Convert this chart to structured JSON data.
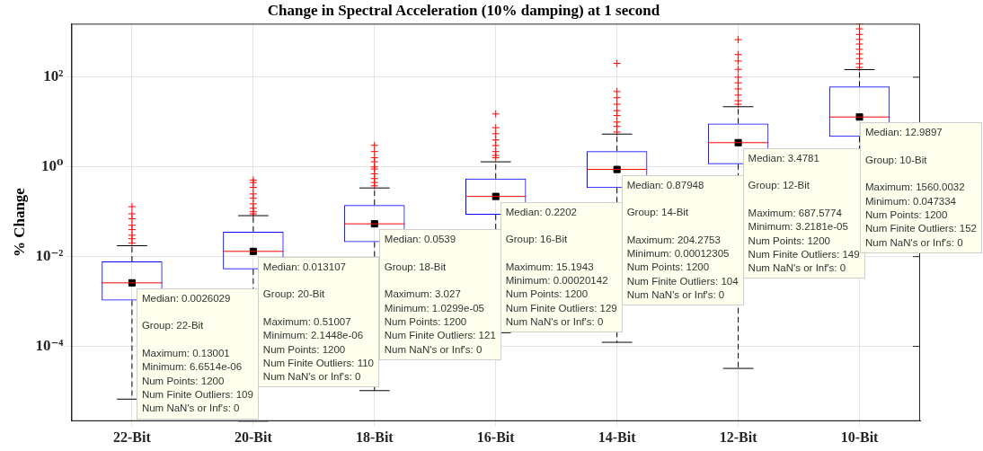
{
  "chart_data": {
    "type": "box",
    "title": "Change in Spectral Acceleration (10% damping) at 1 second",
    "ylabel": "% Change",
    "categories": [
      "22-Bit",
      "20-Bit",
      "18-Bit",
      "16-Bit",
      "14-Bit",
      "12-Bit",
      "10-Bit"
    ],
    "color": "#0000ff",
    "boxes": [
      {
        "low": 6.6514e-06,
        "q1": 0.00105,
        "median": 0.0026029,
        "q3": 0.0078,
        "high": 0.0175,
        "outliers": [
          0.02,
          0.025,
          0.03,
          0.04,
          0.05,
          0.07,
          0.09,
          0.13001
        ]
      },
      {
        "low": 2.1448e-06,
        "q1": 0.0052,
        "median": 0.013107,
        "q3": 0.036,
        "high": 0.082,
        "outliers": [
          0.09,
          0.1,
          0.12,
          0.15,
          0.2,
          0.25,
          0.35,
          0.45,
          0.51007
        ]
      },
      {
        "low": 1.0299e-05,
        "q1": 0.021,
        "median": 0.0539,
        "q3": 0.142,
        "high": 0.34,
        "outliers": [
          0.38,
          0.45,
          0.55,
          0.7,
          0.9,
          1.0,
          1.3,
          1.6,
          2.2,
          3.027
        ]
      },
      {
        "low": 0.00020142,
        "q1": 0.086,
        "median": 0.2202,
        "q3": 0.55,
        "high": 1.3,
        "outliers": [
          1.6,
          1.8,
          2.2,
          3.0,
          4.0,
          5.5,
          7.5,
          15.1943
        ]
      },
      {
        "low": 0.00012305,
        "q1": 0.34,
        "median": 0.87948,
        "q3": 2.26,
        "high": 5.4,
        "outliers": [
          6,
          8,
          10,
          14,
          18,
          25,
          35,
          48,
          204.2753
        ]
      },
      {
        "low": 3.2181e-05,
        "q1": 1.15,
        "median": 3.4781,
        "q3": 9.3,
        "high": 22,
        "outliers": [
          25,
          30,
          40,
          55,
          75,
          100,
          150,
          230,
          320,
          687.5774
        ]
      },
      {
        "low": 0.047334,
        "q1": 4.7,
        "median": 12.9897,
        "q3": 62,
        "high": 148,
        "outliers": [
          165,
          200,
          260,
          330,
          420,
          550,
          700,
          900,
          1200,
          1560.0032
        ]
      }
    ],
    "series": [
      {
        "type": "scatter",
        "marker": "square",
        "color": "#000000",
        "x": [
          "22-Bit",
          "20-Bit",
          "18-Bit",
          "16-Bit",
          "14-Bit",
          "12-Bit",
          "10-Bit"
        ],
        "values": [
          0.0026029,
          0.013107,
          0.0539,
          0.2202,
          0.87948,
          3.4781,
          12.9897
        ]
      }
    ],
    "log": "y",
    "grid": true,
    "ylim": [
      2.1448e-06,
      1560.0032
    ],
    "yticks": [
      {
        "value": 0.0001,
        "label": "10⁻⁴"
      },
      {
        "value": 0.01,
        "label": "10⁻²"
      },
      {
        "value": 1,
        "label": "10⁰"
      },
      {
        "value": 100,
        "label": "10²"
      }
    ],
    "annotations": [
      {
        "text": "Median: 0.0026029",
        "x": "22-Bit",
        "y": 0.0026029
      },
      "Group: 22-Bit",
      "Maximum: 0.13001",
      "Minimum: 6.6514e-06",
      "Num Points: 1200",
      "Num Finite Outliers: 109",
      "Num NaN's or Inf's: 0",
      {
        "text": "Median: 0.013107",
        "x": "20-Bit",
        "y": 0.013107
      },
      "Group: 20-Bit",
      "Maximum: 0.51007",
      "Minimum: 2.1448e-06",
      "Num Points: 1200",
      "Num Finite Outliers: 110",
      "Num NaN's or Inf's: 0",
      {
        "text": "Median: 0.0539",
        "x": "18-Bit",
        "y": 0.0539
      },
      "Group: 18-Bit",
      "Maximum: 3.027",
      "Minimum: 1.0299e-05",
      "Num Points: 1200",
      "Num Finite Outliers: 121",
      "Num NaN's or Inf's: 0",
      {
        "text": "Median: 0.2202",
        "x": "16-Bit",
        "y": 0.2202
      },
      "Group: 16-Bit",
      "Maximum: 15.1943",
      "Minimum: 0.00020142",
      "Num Points: 1200",
      "Num Finite Outliers: 129",
      "Num NaN's or Inf's: 0",
      {
        "text": "Median: 0.87948",
        "x": "14-Bit",
        "y": 0.87948
      },
      "Group: 14-Bit",
      "Maximum: 204.2753",
      "Minimum: 0.00012305",
      "Num Points: 1200",
      "Num Finite Outliers: 104",
      "Num NaN's or Inf's: 0",
      {
        "text": "Median: 3.4781",
        "x": "12-Bit",
        "y": 3.4781
      },
      "Group: 12-Bit",
      "Maximum: 687.5774",
      "Minimum: 3.2181e-05",
      "Num Points: 1200",
      "Num Finite Outliers: 149",
      "Num NaN's or Inf's: 0",
      {
        "text": "Median: 12.9897",
        "x": "10-Bit",
        "y": 12.9897
      },
      "Group: 10-Bit",
      "Maximum: 1560.0032",
      "Minimum: 0.047334",
      "Num Points: 1200",
      "Num Finite Outliers: 152",
      "Num NaN's or Inf's: 0"
    ]
  }
}
